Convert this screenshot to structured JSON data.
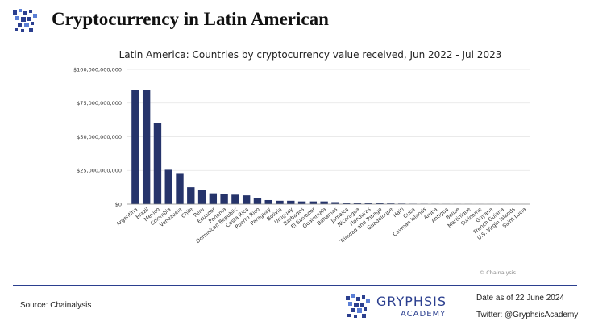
{
  "header": {
    "title": "Cryptocurrency in Latin American",
    "logo_icon": "gryphon-logo-icon"
  },
  "chart_data": {
    "type": "bar",
    "title": "Latin America: Countries by cryptocurrency value received, Jun 2022 - Jul 2023",
    "xlabel": "",
    "ylabel": "",
    "ylim": [
      0,
      100000000
    ],
    "yticks": [
      "$0",
      "$25,000,000,000",
      "$50,000,000,000",
      "$75,000,000,000",
      "$100,000,000,000"
    ],
    "ytick_values": [
      0,
      25000000,
      50000000,
      75000000,
      100000000
    ],
    "grid": true,
    "bar_color": "#26346b",
    "source_note": "© Chainalysis",
    "categories": [
      "Argentina",
      "Brazil",
      "Mexico",
      "Colombia",
      "Venezuela",
      "Chile",
      "Peru",
      "Ecuador",
      "Panama",
      "Dominican Republic",
      "Costa Rica",
      "Puerto Rico",
      "Paraguay",
      "Bolivia",
      "Uruguay",
      "Barbados",
      "El Salvador",
      "Guatemala",
      "Bahamas",
      "Jamaica",
      "Nicaragua",
      "Honduras",
      "Trinidad and Tobago",
      "Guadeloupe",
      "Haiti",
      "Cuba",
      "Cayman Islands",
      "Aruba",
      "Antigua",
      "Belize",
      "Martinique",
      "Suriname",
      "Guyana",
      "French Guiana",
      "U.S. Virgin Islands",
      "Saint Lucia"
    ],
    "values": [
      85000000,
      85000000,
      60000000,
      25500000,
      22500000,
      12500000,
      10500000,
      8000000,
      7500000,
      7000000,
      6500000,
      4500000,
      3000000,
      2500000,
      2500000,
      2000000,
      2000000,
      2000000,
      1500000,
      1200000,
      1000000,
      800000,
      600000,
      500000,
      400000,
      300000,
      250000,
      200000,
      150000,
      120000,
      100000,
      80000,
      60000,
      50000,
      40000,
      30000
    ]
  },
  "footer": {
    "source": "Source: Chainalysis",
    "brand_name": "GRYPHSIS",
    "brand_sub": "ACADEMY",
    "date": "Date as of 22 June 2024",
    "twitter": "Twitter: @GryphsisAcademy",
    "accent_color": "#2b3f8f"
  }
}
